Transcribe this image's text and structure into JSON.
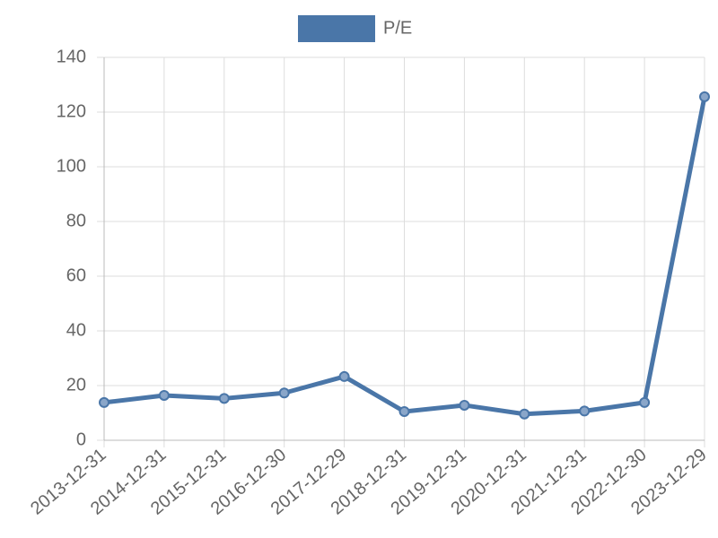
{
  "chart_data": {
    "type": "line",
    "categories": [
      "2013-12-31",
      "2014-12-31",
      "2015-12-31",
      "2016-12-30",
      "2017-12-29",
      "2018-12-31",
      "2019-12-31",
      "2020-12-31",
      "2021-12-31",
      "2022-12-30",
      "2023-12-29"
    ],
    "series": [
      {
        "name": "P/E",
        "color": "#4a76a8",
        "values": [
          13.8,
          16.4,
          15.3,
          17.3,
          23.3,
          10.5,
          12.8,
          9.6,
          10.7,
          13.8,
          125.6
        ]
      }
    ],
    "ylim": [
      0,
      140
    ],
    "yticks": [
      0,
      20,
      40,
      60,
      80,
      100,
      120,
      140
    ],
    "grid": true,
    "legend": "top"
  }
}
